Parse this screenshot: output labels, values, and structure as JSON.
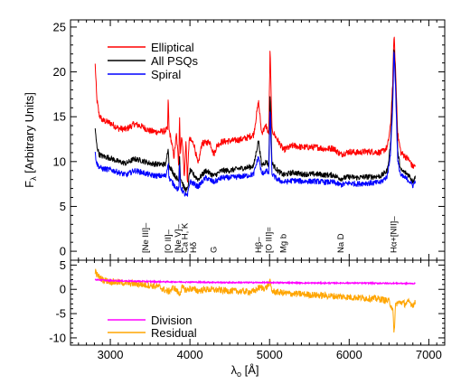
{
  "chart_data": [
    {
      "type": "line",
      "panel": "top",
      "ylabel_main": "F",
      "ylabel_sub": "λ",
      "ylabel_rest": " [Arbitrary Units]",
      "xlim": [
        2500,
        7200
      ],
      "ylim": [
        -1,
        25.8
      ],
      "yticks": [
        0,
        5,
        10,
        15,
        20,
        25
      ],
      "legend_position": "top-left",
      "colors": {
        "Elliptical": "#ff0000",
        "All PSQs": "#000000",
        "Spiral": "#0000ff"
      },
      "series": [
        {
          "name": "Elliptical",
          "color": "#ff0000",
          "points": [
            [
              2810,
              20.8
            ],
            [
              2830,
              17.0
            ],
            [
              2860,
              15.2
            ],
            [
              2900,
              14.6
            ],
            [
              3000,
              14.3
            ],
            [
              3100,
              13.7
            ],
            [
              3200,
              13.6
            ],
            [
              3300,
              14.2
            ],
            [
              3400,
              13.9
            ],
            [
              3500,
              13.4
            ],
            [
              3600,
              13.3
            ],
            [
              3680,
              13.4
            ],
            [
              3720,
              13.6
            ],
            [
              3728,
              17.6
            ],
            [
              3736,
              13.6
            ],
            [
              3760,
              12.6
            ],
            [
              3800,
              10.5
            ],
            [
              3830,
              13.0
            ],
            [
              3860,
              9.6
            ],
            [
              3869,
              15.4
            ],
            [
              3880,
              11.0
            ],
            [
              3900,
              13.0
            ],
            [
              3930,
              8.2
            ],
            [
              3950,
              12.5
            ],
            [
              3968,
              7.6
            ],
            [
              3990,
              12.5
            ],
            [
              4050,
              12.0
            ],
            [
              4102,
              9.6
            ],
            [
              4150,
              12.0
            ],
            [
              4250,
              12.2
            ],
            [
              4300,
              10.8
            ],
            [
              4340,
              11.8
            ],
            [
              4400,
              12.2
            ],
            [
              4500,
              12.3
            ],
            [
              4600,
              12.4
            ],
            [
              4700,
              12.6
            ],
            [
              4800,
              13.0
            ],
            [
              4861,
              16.7
            ],
            [
              4900,
              13.2
            ],
            [
              4959,
              14.0
            ],
            [
              4990,
              13.0
            ],
            [
              5007,
              22.6
            ],
            [
              5030,
              13.5
            ],
            [
              5100,
              12.4
            ],
            [
              5175,
              11.3
            ],
            [
              5300,
              11.8
            ],
            [
              5400,
              11.6
            ],
            [
              5500,
              11.6
            ],
            [
              5600,
              11.6
            ],
            [
              5700,
              11.4
            ],
            [
              5800,
              11.5
            ],
            [
              5893,
              10.8
            ],
            [
              6000,
              11.1
            ],
            [
              6100,
              11.0
            ],
            [
              6200,
              11.1
            ],
            [
              6300,
              11.1
            ],
            [
              6400,
              11.0
            ],
            [
              6480,
              11.6
            ],
            [
              6520,
              14.0
            ],
            [
              6548,
              19.0
            ],
            [
              6563,
              24.3
            ],
            [
              6583,
              20.0
            ],
            [
              6610,
              13.0
            ],
            [
              6650,
              11.0
            ],
            [
              6700,
              10.6
            ],
            [
              6750,
              10.2
            ],
            [
              6800,
              9.4
            ],
            [
              6830,
              9.6
            ]
          ]
        },
        {
          "name": "All PSQs",
          "color": "#000000",
          "points": [
            [
              2810,
              13.5
            ],
            [
              2830,
              11.8
            ],
            [
              2860,
              10.8
            ],
            [
              2900,
              10.6
            ],
            [
              3000,
              10.4
            ],
            [
              3100,
              10.0
            ],
            [
              3200,
              9.8
            ],
            [
              3300,
              10.3
            ],
            [
              3400,
              10.1
            ],
            [
              3500,
              9.8
            ],
            [
              3600,
              9.7
            ],
            [
              3700,
              9.7
            ],
            [
              3728,
              11.8
            ],
            [
              3736,
              9.6
            ],
            [
              3800,
              8.6
            ],
            [
              3860,
              7.8
            ],
            [
              3869,
              11.0
            ],
            [
              3880,
              8.3
            ],
            [
              3930,
              7.0
            ],
            [
              3968,
              6.8
            ],
            [
              4000,
              9.0
            ],
            [
              4102,
              8.0
            ],
            [
              4200,
              9.0
            ],
            [
              4300,
              8.4
            ],
            [
              4400,
              9.0
            ],
            [
              4500,
              9.0
            ],
            [
              4600,
              9.2
            ],
            [
              4700,
              9.3
            ],
            [
              4800,
              9.5
            ],
            [
              4861,
              12.4
            ],
            [
              4900,
              9.6
            ],
            [
              4959,
              10.0
            ],
            [
              4990,
              9.6
            ],
            [
              5007,
              17.8
            ],
            [
              5030,
              9.8
            ],
            [
              5100,
              9.0
            ],
            [
              5175,
              8.5
            ],
            [
              5300,
              8.8
            ],
            [
              5400,
              8.6
            ],
            [
              5500,
              8.6
            ],
            [
              5600,
              8.6
            ],
            [
              5700,
              8.5
            ],
            [
              5800,
              8.5
            ],
            [
              5893,
              8.1
            ],
            [
              6000,
              8.3
            ],
            [
              6100,
              8.2
            ],
            [
              6200,
              8.3
            ],
            [
              6300,
              8.3
            ],
            [
              6400,
              8.4
            ],
            [
              6480,
              9.0
            ],
            [
              6520,
              12.0
            ],
            [
              6548,
              17.8
            ],
            [
              6563,
              23.0
            ],
            [
              6583,
              19.0
            ],
            [
              6610,
              11.0
            ],
            [
              6650,
              9.0
            ],
            [
              6700,
              8.8
            ],
            [
              6750,
              8.5
            ],
            [
              6800,
              7.8
            ],
            [
              6830,
              8.4
            ]
          ]
        },
        {
          "name": "Spiral",
          "color": "#0000ff",
          "points": [
            [
              2810,
              10.9
            ],
            [
              2830,
              9.8
            ],
            [
              2860,
              9.4
            ],
            [
              2900,
              9.2
            ],
            [
              3000,
              9.1
            ],
            [
              3100,
              8.8
            ],
            [
              3200,
              8.5
            ],
            [
              3300,
              9.0
            ],
            [
              3400,
              8.8
            ],
            [
              3500,
              8.5
            ],
            [
              3600,
              8.4
            ],
            [
              3700,
              8.4
            ],
            [
              3728,
              10.0
            ],
            [
              3736,
              8.2
            ],
            [
              3800,
              7.4
            ],
            [
              3860,
              6.8
            ],
            [
              3869,
              9.6
            ],
            [
              3880,
              7.2
            ],
            [
              3930,
              6.4
            ],
            [
              3968,
              6.1
            ],
            [
              4000,
              7.8
            ],
            [
              4102,
              7.2
            ],
            [
              4200,
              8.2
            ],
            [
              4300,
              7.7
            ],
            [
              4400,
              8.2
            ],
            [
              4500,
              8.2
            ],
            [
              4600,
              8.3
            ],
            [
              4700,
              8.4
            ],
            [
              4800,
              8.6
            ],
            [
              4861,
              10.6
            ],
            [
              4900,
              8.6
            ],
            [
              4959,
              9.0
            ],
            [
              4990,
              8.6
            ],
            [
              5007,
              15.8
            ],
            [
              5030,
              8.6
            ],
            [
              5100,
              8.0
            ],
            [
              5175,
              7.7
            ],
            [
              5300,
              7.9
            ],
            [
              5400,
              7.8
            ],
            [
              5500,
              7.8
            ],
            [
              5600,
              7.8
            ],
            [
              5700,
              7.7
            ],
            [
              5800,
              7.7
            ],
            [
              5893,
              7.4
            ],
            [
              6000,
              7.6
            ],
            [
              6100,
              7.5
            ],
            [
              6200,
              7.6
            ],
            [
              6300,
              7.6
            ],
            [
              6400,
              7.7
            ],
            [
              6480,
              8.4
            ],
            [
              6520,
              11.0
            ],
            [
              6548,
              16.5
            ],
            [
              6563,
              22.6
            ],
            [
              6583,
              18.0
            ],
            [
              6610,
              10.0
            ],
            [
              6650,
              8.4
            ],
            [
              6700,
              8.2
            ],
            [
              6750,
              7.9
            ],
            [
              6800,
              7.3
            ],
            [
              6830,
              7.8
            ]
          ]
        }
      ],
      "line_labels": [
        {
          "text": "[Ne III]–",
          "x": 3440
        },
        {
          "text": "[O II]–",
          "x": 3727
        },
        {
          "text": "[Ne V]–",
          "x": 3850
        },
        {
          "text": "Ca H, K",
          "x": 3935
        },
        {
          "text": "Hδ",
          "x": 4045
        },
        {
          "text": "G",
          "x": 4300
        },
        {
          "text": "Hβ–",
          "x": 4861
        },
        {
          "text": "[O III]=",
          "x": 4990
        },
        {
          "text": "Mg b",
          "x": 5175
        },
        {
          "text": "Na D",
          "x": 5893
        },
        {
          "text": "Hα+[NII]–",
          "x": 6560
        }
      ]
    },
    {
      "type": "line",
      "panel": "bottom",
      "xlabel_main": "λ",
      "xlabel_sub": "o",
      "xlabel_rest": " [Å]",
      "xlim": [
        2500,
        7200
      ],
      "ylim": [
        -11.5,
        6
      ],
      "xticks": [
        3000,
        4000,
        5000,
        6000,
        7000
      ],
      "yticks": [
        -10,
        -5,
        0,
        5
      ],
      "legend_position": "bottom-left",
      "colors": {
        "Division": "#ff00ff",
        "Residual": "#ffa500"
      },
      "series": [
        {
          "name": "Division",
          "color": "#ff00ff",
          "points": [
            [
              2810,
              2.0
            ],
            [
              3000,
              1.8
            ],
            [
              3500,
              1.6
            ],
            [
              4000,
              1.5
            ],
            [
              4500,
              1.4
            ],
            [
              5000,
              1.4
            ],
            [
              5500,
              1.3
            ],
            [
              6000,
              1.3
            ],
            [
              6500,
              1.25
            ],
            [
              6830,
              1.2
            ]
          ]
        },
        {
          "name": "Residual",
          "color": "#ffa500",
          "points": [
            [
              2810,
              3.8
            ],
            [
              2830,
              3.0
            ],
            [
              2900,
              2.0
            ],
            [
              3000,
              1.6
            ],
            [
              3200,
              1.3
            ],
            [
              3400,
              1.0
            ],
            [
              3600,
              0.6
            ],
            [
              3727,
              -0.5
            ],
            [
              3800,
              0.4
            ],
            [
              3868,
              -1.0
            ],
            [
              3900,
              0.3
            ],
            [
              3968,
              -0.2
            ],
            [
              4000,
              0.2
            ],
            [
              4102,
              -0.3
            ],
            [
              4200,
              0.0
            ],
            [
              4400,
              -0.2
            ],
            [
              4600,
              -0.4
            ],
            [
              4800,
              -0.5
            ],
            [
              4861,
              0.3
            ],
            [
              4959,
              0.3
            ],
            [
              5007,
              1.5
            ],
            [
              5030,
              -0.4
            ],
            [
              5200,
              -0.8
            ],
            [
              5400,
              -1.0
            ],
            [
              5600,
              -1.2
            ],
            [
              5800,
              -1.4
            ],
            [
              6000,
              -1.6
            ],
            [
              6200,
              -1.8
            ],
            [
              6400,
              -2.0
            ],
            [
              6500,
              -2.5
            ],
            [
              6548,
              -4.0
            ],
            [
              6563,
              -9.5
            ],
            [
              6583,
              -3.0
            ],
            [
              6650,
              -2.6
            ],
            [
              6700,
              -3.0
            ],
            [
              6750,
              -2.6
            ],
            [
              6800,
              -3.2
            ],
            [
              6830,
              -2.8
            ]
          ]
        }
      ]
    }
  ]
}
